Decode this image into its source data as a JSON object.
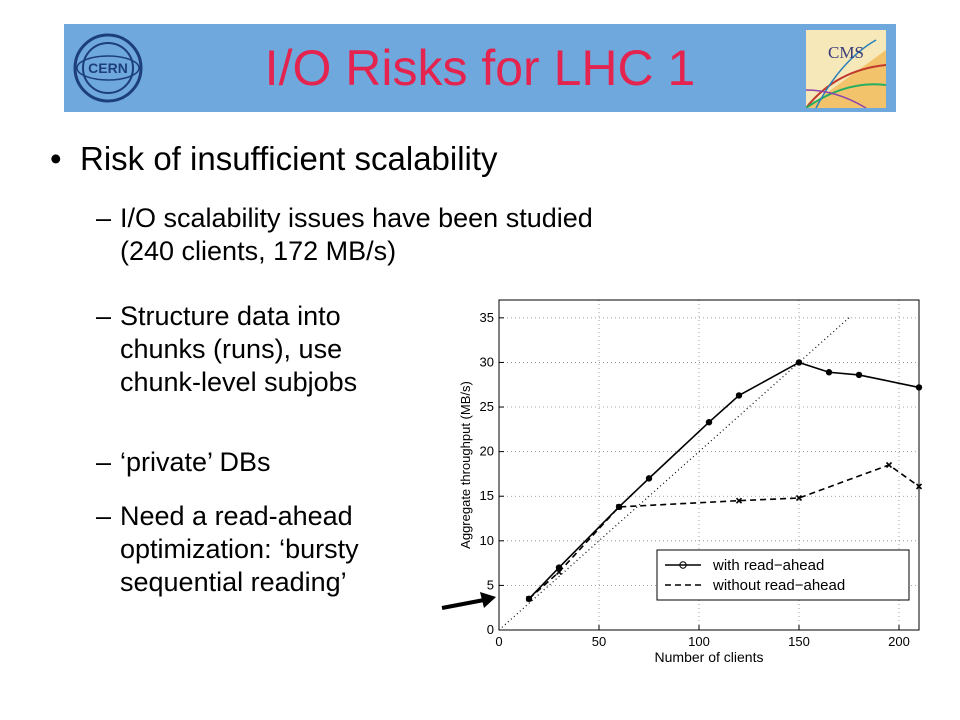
{
  "slide": {
    "title": "I/O Risks for LHC 1",
    "logo_left_text": "CERN",
    "logo_right_text": "CMS",
    "bullet1": "Risk of insufficient scalability",
    "sub1_line1": "I/O scalability issues have been studied",
    "sub1_line2": "(240 clients, 172 MB/s)",
    "sub2_line1": "Structure data into",
    "sub2_line2": "chunks (runs), use",
    "sub2_line3": "chunk-level subjobs",
    "sub3": "‘private’ DBs",
    "sub4_line1": "Need a read-ahead",
    "sub4_line2": "optimization: ‘bursty",
    "sub4_line3": "sequential reading’",
    "bullet_glyph": "•",
    "dash_glyph": "–"
  },
  "colors": {
    "title_bar": "#6fa8dc",
    "title_text": "#e4234f"
  },
  "chart_data": {
    "type": "line",
    "xlabel": "Number of clients",
    "ylabel": "Aggregate throughput (MB/s)",
    "xlim": [
      0,
      210
    ],
    "ylim": [
      0,
      37
    ],
    "xticks": [
      0,
      50,
      100,
      150,
      200
    ],
    "yticks": [
      0,
      5,
      10,
      15,
      20,
      25,
      30,
      35
    ],
    "grid": true,
    "legend_position": "bottom-right",
    "series": [
      {
        "name": "with read−ahead",
        "style": "solid",
        "marker": "o",
        "x": [
          15,
          30,
          60,
          75,
          105,
          120,
          150,
          165,
          180,
          210
        ],
        "y": [
          3.5,
          7.0,
          13.8,
          17.0,
          23.3,
          26.3,
          30.0,
          28.9,
          28.6,
          27.2
        ]
      },
      {
        "name": "without read−ahead",
        "style": "dashed",
        "marker": "x",
        "x": [
          15,
          30,
          60,
          120,
          150,
          195,
          210
        ],
        "y": [
          3.5,
          6.5,
          13.8,
          14.5,
          14.8,
          18.5,
          16.1
        ]
      }
    ],
    "reference_line": {
      "style": "dotted",
      "x": [
        0,
        175
      ],
      "y": [
        0,
        35
      ]
    }
  }
}
